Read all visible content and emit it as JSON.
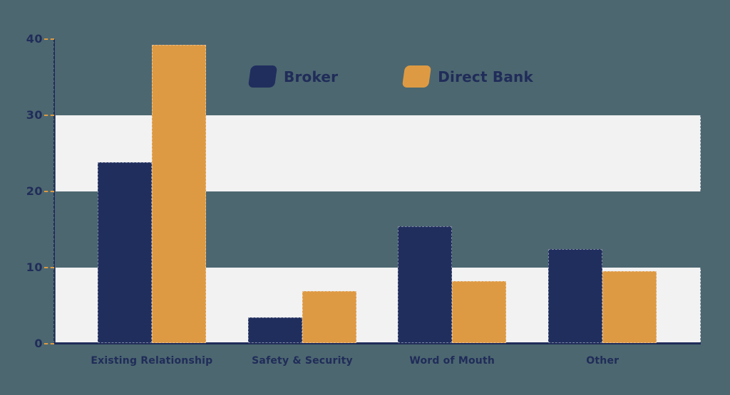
{
  "colors": {
    "background": "#4C6770",
    "band": "#F2F2F3",
    "navy": "#202E5E",
    "orange": "#DE9A43",
    "text": "#202C59",
    "tick": "#DE9A43"
  },
  "legend": {
    "items": [
      {
        "label": "Broker",
        "color": "#202E5E"
      },
      {
        "label": "Direct Bank",
        "color": "#DE9A43"
      }
    ]
  },
  "chart_data": {
    "type": "bar",
    "title": "",
    "xlabel": "",
    "ylabel": "",
    "categories": [
      "Existing Relationship",
      "Safety & Security",
      "Word of Mouth",
      "Other"
    ],
    "series": [
      {
        "name": "Broker",
        "color": "#202E5E",
        "values": [
          23.7,
          3.4,
          15.3,
          12.3
        ]
      },
      {
        "name": "Direct Bank",
        "color": "#DE9A43",
        "values": [
          39.2,
          6.8,
          8.1,
          9.4
        ]
      }
    ],
    "yticks": [
      0,
      10,
      20,
      30,
      40
    ],
    "ylim": [
      0,
      40
    ],
    "grid": "alternating horizontal light bands (0-10 and 20-30)",
    "legend_position": "top-center"
  }
}
